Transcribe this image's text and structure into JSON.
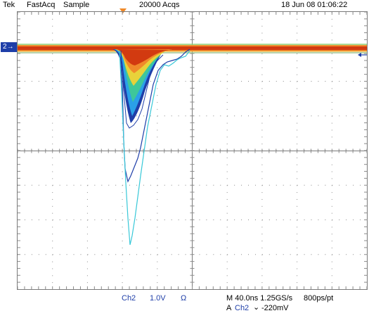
{
  "header": {
    "brand": "Tek",
    "mode": "FastAcq",
    "acq_type": "Sample",
    "acq_count": "20000 Acqs",
    "datetime": "18 Jun 08 01:06:22"
  },
  "channel": {
    "marker": "2",
    "marker_color": "#1e3ea8"
  },
  "footer": {
    "ch_label": "Ch2",
    "volts_div": "1.0V",
    "impedance_symbol": "Ω",
    "timebase": "M 40.0ns 1.25GS/s",
    "record": "800ps/pt",
    "trigger_source_prefix": "A",
    "trigger_channel": "Ch2",
    "trigger_slope_symbol": "⌄",
    "trigger_level": "-220mV"
  },
  "colors": {
    "grid": "#7a7a7a",
    "trace_hot": "#d23a10",
    "trace_warm": "#f08a2a",
    "trace_mid": "#e8d23a",
    "trace_cool": "#3ec79a",
    "trace_cold": "#2aa0e8",
    "trace_deep": "#1e3ea8",
    "trace_light": "#38c8d8"
  }
}
